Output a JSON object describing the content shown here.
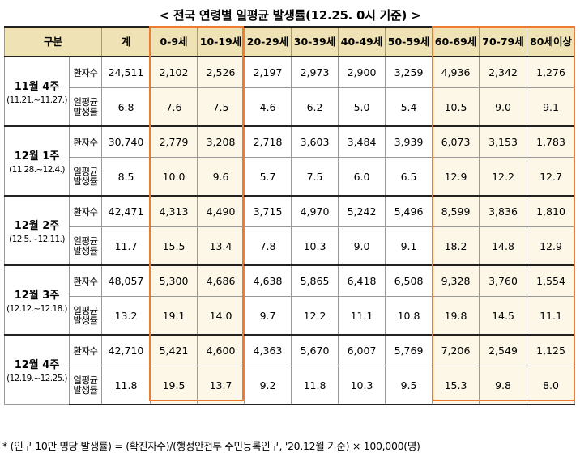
{
  "title": "< 전국 연령별 일평균 발생률(12.25. 0시 기준) >",
  "header": {
    "group": "구분",
    "total": "계",
    "ages": [
      "0-9세",
      "10-19세",
      "20-29세",
      "30-39세",
      "40-49세",
      "50-59세",
      "60-69세",
      "70-79세",
      "80세이상"
    ]
  },
  "row_labels": {
    "cases": "환자수",
    "rate": "일평균발생률"
  },
  "weeks": [
    {
      "name": "11월 4주",
      "range": "(11.21.~11.27.)",
      "cases": [
        "24,511",
        "2,102",
        "2,526",
        "2,197",
        "2,973",
        "2,900",
        "3,259",
        "4,936",
        "2,342",
        "1,276"
      ],
      "rate": [
        "6.8",
        "7.6",
        "7.5",
        "4.6",
        "6.2",
        "5.0",
        "5.4",
        "10.5",
        "9.0",
        "9.1"
      ]
    },
    {
      "name": "12월 1주",
      "range": "(11.28.~12.4.)",
      "cases": [
        "30,740",
        "2,779",
        "3,208",
        "2,718",
        "3,603",
        "3,484",
        "3,939",
        "6,073",
        "3,153",
        "1,783"
      ],
      "rate": [
        "8.5",
        "10.0",
        "9.6",
        "5.7",
        "7.5",
        "6.0",
        "6.5",
        "12.9",
        "12.2",
        "12.7"
      ]
    },
    {
      "name": "12월 2주",
      "range": "(12.5.~12.11.)",
      "cases": [
        "42,471",
        "4,313",
        "4,490",
        "3,715",
        "4,970",
        "5,242",
        "5,496",
        "8,599",
        "3,836",
        "1,810"
      ],
      "rate": [
        "11.7",
        "15.5",
        "13.4",
        "7.8",
        "10.3",
        "9.0",
        "9.1",
        "18.2",
        "14.8",
        "12.9"
      ]
    },
    {
      "name": "12월 3주",
      "range": "(12.12.~12.18.)",
      "cases": [
        "48,057",
        "5,300",
        "4,686",
        "4,638",
        "5,865",
        "6,418",
        "6,508",
        "9,328",
        "3,760",
        "1,554"
      ],
      "rate": [
        "13.2",
        "19.1",
        "14.0",
        "9.7",
        "12.2",
        "11.1",
        "10.8",
        "19.8",
        "14.5",
        "11.1"
      ]
    },
    {
      "name": "12월 4주",
      "range": "(12.19.~12.25.)",
      "cases": [
        "42,710",
        "5,421",
        "4,600",
        "4,363",
        "5,670",
        "6,007",
        "5,769",
        "7,206",
        "2,549",
        "1,125"
      ],
      "rate": [
        "11.8",
        "19.5",
        "13.7",
        "9.2",
        "11.8",
        "10.3",
        "9.5",
        "15.3",
        "9.8",
        "8.0"
      ]
    }
  ],
  "footnote": "* (인구 10만 명당 발생률) = (확진자수)/(행정안전부 주민등록인구, '20.12월 기준) × 100,000(명)",
  "colors": {
    "header_bg": "#efe2b4",
    "highlight_bg": "#fcf7e6",
    "outline": "#ec7c30"
  }
}
